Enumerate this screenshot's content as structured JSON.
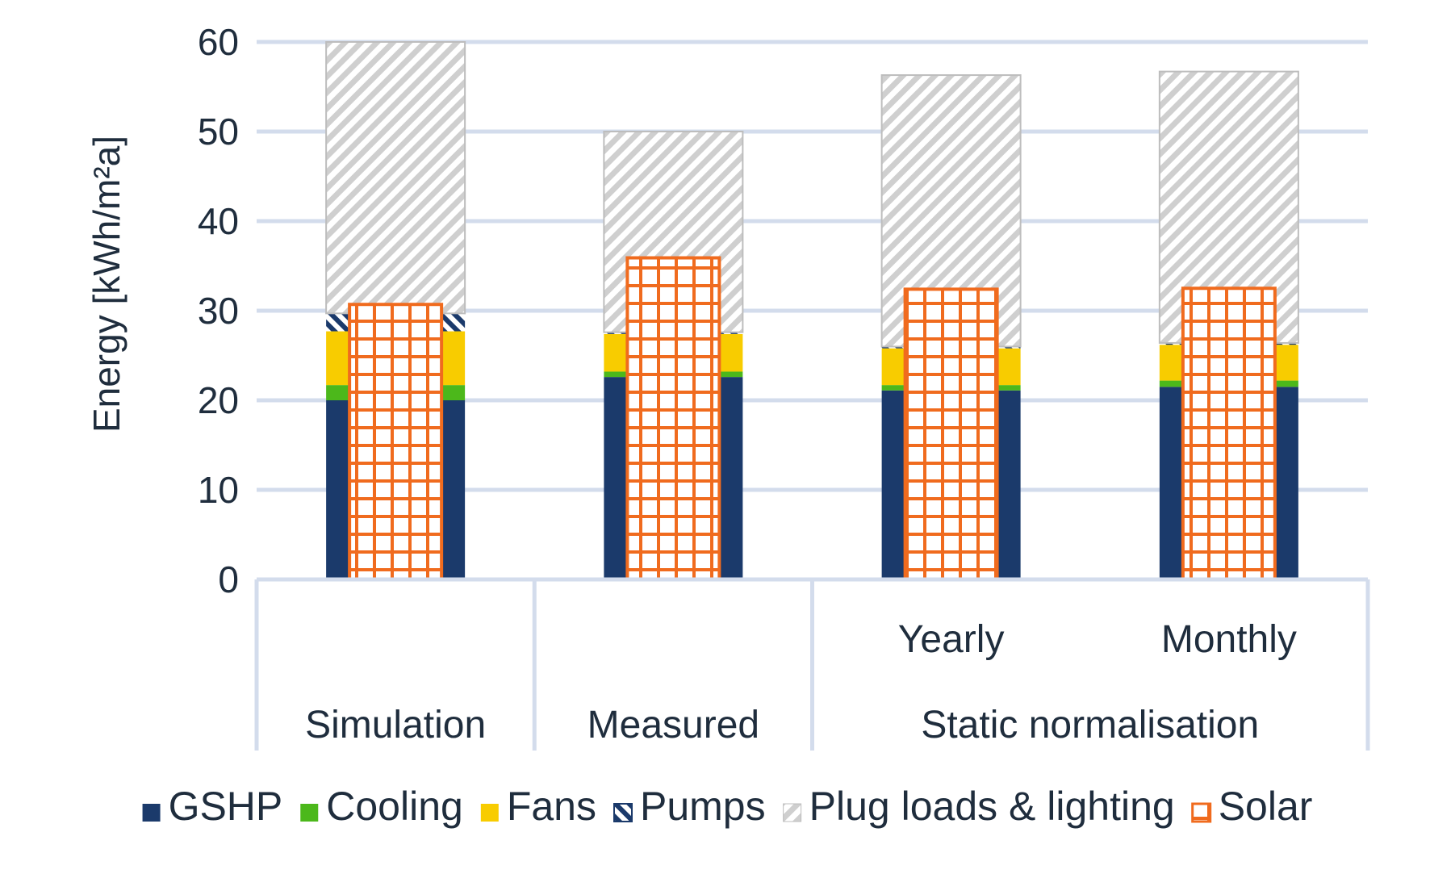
{
  "chart_data": {
    "type": "bar",
    "subtype": "stacked-with-overlay",
    "title": "",
    "ylabel": "Energy [kWh/m²a]",
    "ylim": [
      0,
      60
    ],
    "yticks": [
      0,
      10,
      20,
      30,
      40,
      50,
      60
    ],
    "grid": true,
    "categories": [
      {
        "label": "",
        "group": "Simulation"
      },
      {
        "label": "",
        "group": "Measured"
      },
      {
        "label": "Yearly",
        "group": "Static normalisation"
      },
      {
        "label": "Monthly",
        "group": "Static normalisation"
      }
    ],
    "groups": [
      "Simulation",
      "Measured",
      "Static normalisation"
    ],
    "series": [
      {
        "name": "GSHP",
        "stacked": true,
        "color": "#1b3a6b",
        "pattern": "solid",
        "values": [
          20,
          22.6,
          21.1,
          21.5
        ]
      },
      {
        "name": "Cooling",
        "stacked": true,
        "color": "#4cb81b",
        "pattern": "solid",
        "values": [
          1.7,
          0.6,
          0.6,
          0.7
        ]
      },
      {
        "name": "Fans",
        "stacked": true,
        "color": "#f8cc00",
        "pattern": "solid",
        "values": [
          6.0,
          4.2,
          4.1,
          4.0
        ]
      },
      {
        "name": "Pumps",
        "stacked": true,
        "color": "#1b3a6b",
        "pattern": "diagonal-dark",
        "values": [
          2.0,
          0.2,
          0.2,
          0.2
        ]
      },
      {
        "name": "Plug loads & lighting",
        "stacked": true,
        "color": "#c8c8c8",
        "pattern": "diagonal-grey",
        "values": [
          30.3,
          22.4,
          30.3,
          30.3
        ]
      },
      {
        "name": "Solar",
        "stacked": false,
        "color": "#f06b1e",
        "pattern": "grid",
        "values": [
          30.7,
          35.9,
          32.4,
          32.5
        ]
      }
    ],
    "legend_position": "bottom"
  }
}
